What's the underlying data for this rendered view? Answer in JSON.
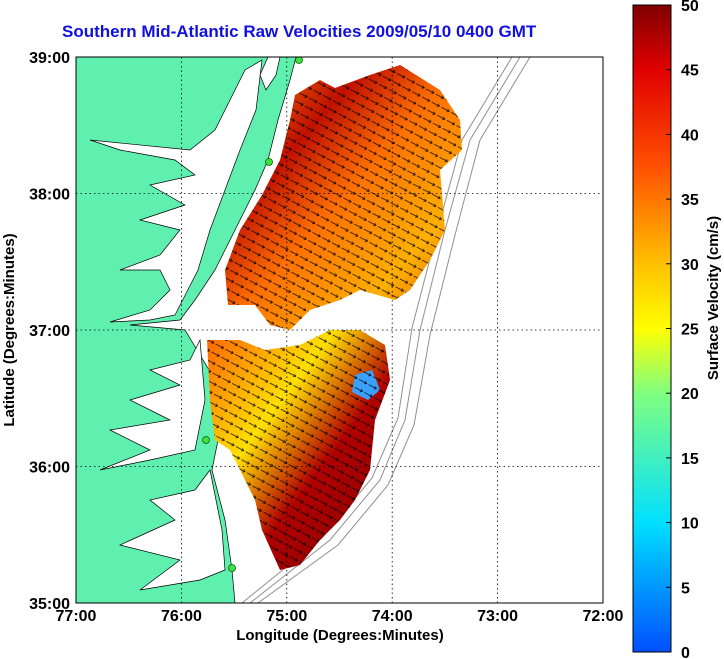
{
  "title": "Southern Mid-Atlantic Raw Velocities 2009/05/10 0400 GMT",
  "map": {
    "x_label": "Longitude (Degrees:Minutes)",
    "y_label": "Latitude (Degrees:Minutes)",
    "x_ticks": [
      "77:00",
      "76:00",
      "75:00",
      "74:00",
      "73:00",
      "72:00"
    ],
    "y_ticks": [
      "39:00",
      "38:00",
      "37:00",
      "36:00",
      "35:00"
    ],
    "lon_range": [
      -77,
      -72
    ],
    "lat_range": [
      35,
      39
    ],
    "grid": true,
    "land_color": "#5ff0b0",
    "bathymetry_color": "#909090"
  },
  "colorbar": {
    "label": "Surface Velocity (cm/s)",
    "ticks": [
      "50",
      "45",
      "40",
      "35",
      "30",
      "25",
      "20",
      "15",
      "10",
      "5",
      "0"
    ],
    "range": [
      0,
      50
    ],
    "colormap": "jet"
  }
}
